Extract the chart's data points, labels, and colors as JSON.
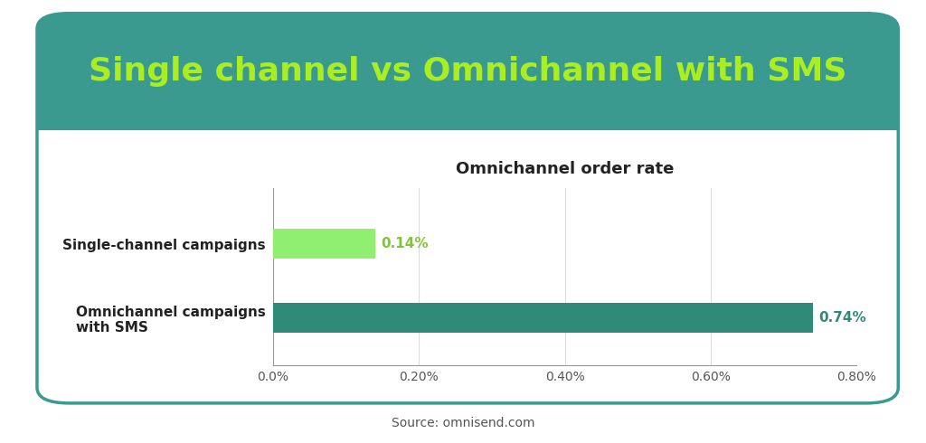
{
  "title": "Single channel vs Omnichannel with SMS",
  "subtitle": "Omnichannel order rate",
  "categories": [
    "Single-channel campaigns",
    "Omnichannel campaigns\nwith SMS"
  ],
  "values": [
    0.0014,
    0.0074
  ],
  "bar_colors": [
    "#90ee70",
    "#2e8b78"
  ],
  "value_labels": [
    "0.14%",
    "0.74%"
  ],
  "value_label_color_0": "#7cc832",
  "value_label_color_1": "#2e8b78",
  "xlim": [
    0,
    0.008
  ],
  "xticks": [
    0.0,
    0.002,
    0.004,
    0.006,
    0.008
  ],
  "xtick_labels": [
    "0.0%",
    "0.20%",
    "0.40%",
    "0.60%",
    "0.80%"
  ],
  "source": "Source: omnisend.com",
  "title_color": "#aaee22",
  "title_bg_color": "#3a9a90",
  "card_bg_color": "#ffffff",
  "card_border_color": "#3a9a90",
  "outer_bg_color": "#ffffff",
  "title_fontsize": 26,
  "subtitle_fontsize": 13,
  "bar_label_fontsize": 11,
  "tick_fontsize": 10,
  "source_fontsize": 10,
  "category_fontsize": 11
}
